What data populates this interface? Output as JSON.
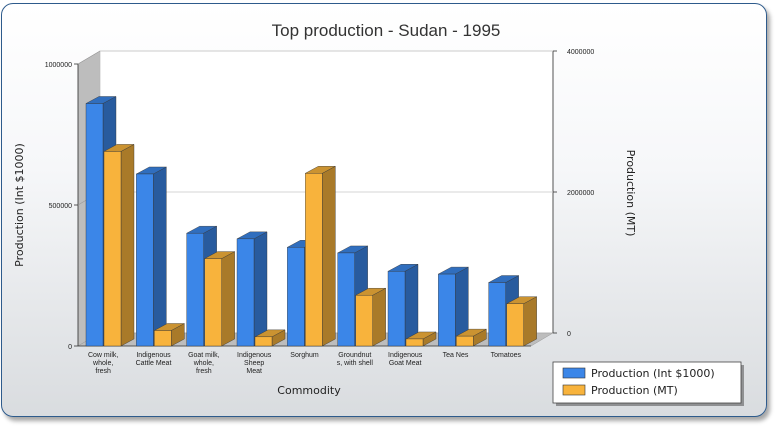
{
  "chart_data": {
    "type": "bar",
    "title": "Top production - Sudan - 1995",
    "xlabel": "Commodity",
    "ylabel": "Production (Int $1000)",
    "y2label": "Production (MT)",
    "ylim": [
      0,
      1000000
    ],
    "y2lim": [
      0,
      4000000
    ],
    "yticks": [
      "0",
      "500000",
      "1000000"
    ],
    "y2ticks": [
      "0",
      "2000000",
      "4000000"
    ],
    "categories": [
      [
        "Cow milk,",
        "whole,",
        "fresh"
      ],
      [
        "Indigenous",
        "Cattle Meat"
      ],
      [
        "Goat milk,",
        "whole,",
        "fresh"
      ],
      [
        "Indigenous",
        "Sheep",
        "Meat"
      ],
      [
        "Sorghum"
      ],
      [
        "Groundnut",
        "s, with shell"
      ],
      [
        "Indigenous",
        "Goat Meat"
      ],
      [
        "Tea Nes"
      ],
      [
        "Tomatoes"
      ]
    ],
    "series": [
      {
        "name": "Production (Int $1000)",
        "axis": "left",
        "color": "#3b86e8",
        "values": [
          860000,
          610000,
          400000,
          380000,
          350000,
          330000,
          265000,
          255000,
          225000
        ]
      },
      {
        "name": "Production (MT)",
        "axis": "right",
        "color": "#f8b33c",
        "values": [
          2760000,
          220000,
          1240000,
          130000,
          2450000,
          720000,
          100000,
          140000,
          600000
        ]
      }
    ],
    "grid": true,
    "legend_position": "bottom-right"
  }
}
